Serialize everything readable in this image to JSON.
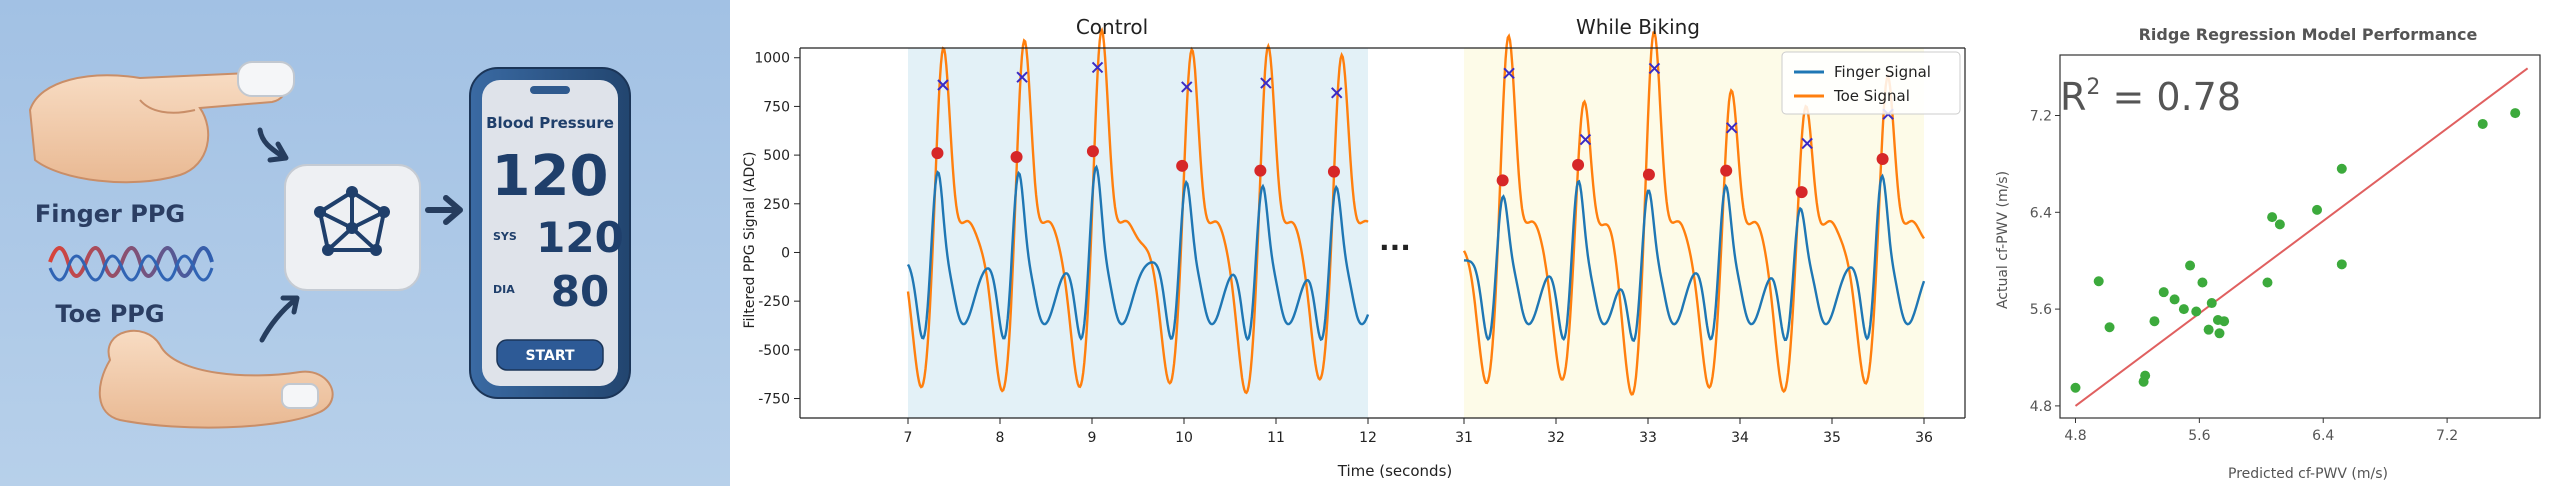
{
  "illustration": {
    "finger_label": "Finger PPG",
    "toe_label": "Toe PPG",
    "phone": {
      "title": "Blood Pressure",
      "reading": "120",
      "sys_label": "SYS",
      "sys_value": "120",
      "dia_label": "DIA",
      "dia_value": "80",
      "button_label": "START"
    },
    "colors": {
      "background": "#a9c6e6",
      "phone_body": "#2f5a8e",
      "screen": "#dfe3ea",
      "button": "#2d5a96"
    }
  },
  "ellipsis": "...",
  "chart_data": [
    {
      "type": "line",
      "xlabel": "Time (seconds)",
      "ylabel": "Filtered PPG Signal (ADC)",
      "ylim": [
        -850,
        1050
      ],
      "yticks": [
        -750,
        -500,
        -250,
        0,
        250,
        500,
        750,
        1000
      ],
      "legend": {
        "placement": "top-right",
        "entries": [
          "Finger Signal",
          "Toe Signal"
        ]
      },
      "grid": false,
      "colors": {
        "finger": "#1f77b4",
        "toe": "#ff7f0e",
        "peak_marker": "#3b2bc4",
        "foot_marker": "#d62728",
        "control_bg": "#e3f1f7",
        "biking_bg": "#fdfbe8"
      },
      "panels": [
        {
          "title": "Control",
          "xlim": [
            7,
            12
          ],
          "xticks": [
            7,
            8,
            9,
            10,
            11,
            12
          ],
          "start": 7.0,
          "end": 12.0,
          "beats": [
            {
              "t": 7.25,
              "finger_peak": 490,
              "toe_peak": 860,
              "toe_min": -740
            },
            {
              "t": 8.13,
              "finger_peak": 485,
              "toe_peak": 900,
              "toe_min": -760
            },
            {
              "t": 8.97,
              "finger_peak": 515,
              "toe_peak": 950,
              "toe_min": -740
            },
            {
              "t": 9.95,
              "finger_peak": 440,
              "toe_peak": 850,
              "toe_min": -720
            },
            {
              "t": 10.78,
              "finger_peak": 420,
              "toe_peak": 870,
              "toe_min": -770
            },
            {
              "t": 11.58,
              "finger_peak": 415,
              "toe_peak": 820,
              "toe_min": -700
            }
          ],
          "peaks": [
            {
              "x": 7.38,
              "y": 860
            },
            {
              "x": 8.24,
              "y": 900
            },
            {
              "x": 9.06,
              "y": 950
            },
            {
              "x": 10.03,
              "y": 850
            },
            {
              "x": 10.89,
              "y": 870
            },
            {
              "x": 11.66,
              "y": 820
            }
          ],
          "feet": [
            {
              "x": 7.32,
              "y": 510
            },
            {
              "x": 8.18,
              "y": 490
            },
            {
              "x": 9.01,
              "y": 520
            },
            {
              "x": 9.98,
              "y": 445
            },
            {
              "x": 10.83,
              "y": 420
            },
            {
              "x": 11.63,
              "y": 415
            }
          ]
        },
        {
          "title": "While Biking",
          "xlim": [
            31,
            36
          ],
          "xticks": [
            31,
            32,
            33,
            34,
            35,
            36
          ],
          "start": 31.0,
          "end": 36.0,
          "beats": [
            {
              "t": 31.35,
              "finger_peak": 370,
              "toe_peak": 920,
              "toe_min": -720
            },
            {
              "t": 32.17,
              "finger_peak": 445,
              "toe_peak": 580,
              "toe_min": -700
            },
            {
              "t": 32.93,
              "finger_peak": 400,
              "toe_peak": 945,
              "toe_min": -780
            },
            {
              "t": 33.77,
              "finger_peak": 420,
              "toe_peak": 640,
              "toe_min": -740
            },
            {
              "t": 34.58,
              "finger_peak": 310,
              "toe_peak": 560,
              "toe_min": -760
            },
            {
              "t": 35.47,
              "finger_peak": 470,
              "toe_peak": 710,
              "toe_min": -720
            }
          ],
          "peaks": [
            {
              "x": 31.49,
              "y": 920
            },
            {
              "x": 32.32,
              "y": 580
            },
            {
              "x": 33.07,
              "y": 945
            },
            {
              "x": 33.91,
              "y": 640
            },
            {
              "x": 34.73,
              "y": 560
            },
            {
              "x": 35.61,
              "y": 710
            }
          ],
          "feet": [
            {
              "x": 31.42,
              "y": 370
            },
            {
              "x": 32.24,
              "y": 450
            },
            {
              "x": 33.01,
              "y": 400
            },
            {
              "x": 33.85,
              "y": 420
            },
            {
              "x": 34.67,
              "y": 310
            },
            {
              "x": 35.55,
              "y": 480
            }
          ]
        }
      ]
    },
    {
      "type": "scatter",
      "title": "Ridge Regression Model Performance",
      "xlabel": "Predicted cf-PWV (m/s)",
      "ylabel": "Actual cf-PWV (m/s)",
      "annotation": {
        "base": "R",
        "sup": "2",
        "rest": " = 0.78"
      },
      "xlim": [
        4.7,
        7.8
      ],
      "ylim": [
        4.7,
        7.7
      ],
      "xticks": [
        4.8,
        5.6,
        6.4,
        7.2
      ],
      "yticks": [
        4.8,
        5.6,
        6.4,
        7.2
      ],
      "fit_line": [
        [
          4.8,
          4.8
        ],
        [
          7.72,
          7.59
        ]
      ],
      "colors": {
        "points": "#3caa3c",
        "fit_line": "#e06060"
      },
      "points": [
        [
          4.8,
          4.95
        ],
        [
          4.95,
          5.83
        ],
        [
          5.02,
          5.45
        ],
        [
          5.24,
          5.0
        ],
        [
          5.25,
          5.05
        ],
        [
          5.31,
          5.5
        ],
        [
          5.37,
          5.74
        ],
        [
          5.44,
          5.68
        ],
        [
          5.5,
          5.6
        ],
        [
          5.54,
          5.96
        ],
        [
          5.58,
          5.58
        ],
        [
          5.62,
          5.82
        ],
        [
          5.66,
          5.43
        ],
        [
          5.68,
          5.65
        ],
        [
          5.72,
          5.51
        ],
        [
          5.73,
          5.4
        ],
        [
          5.76,
          5.5
        ],
        [
          6.04,
          5.82
        ],
        [
          6.07,
          6.36
        ],
        [
          6.12,
          6.3
        ],
        [
          6.36,
          6.42
        ],
        [
          6.52,
          5.97
        ],
        [
          6.52,
          6.76
        ],
        [
          7.43,
          7.13
        ],
        [
          7.64,
          7.22
        ]
      ]
    }
  ]
}
